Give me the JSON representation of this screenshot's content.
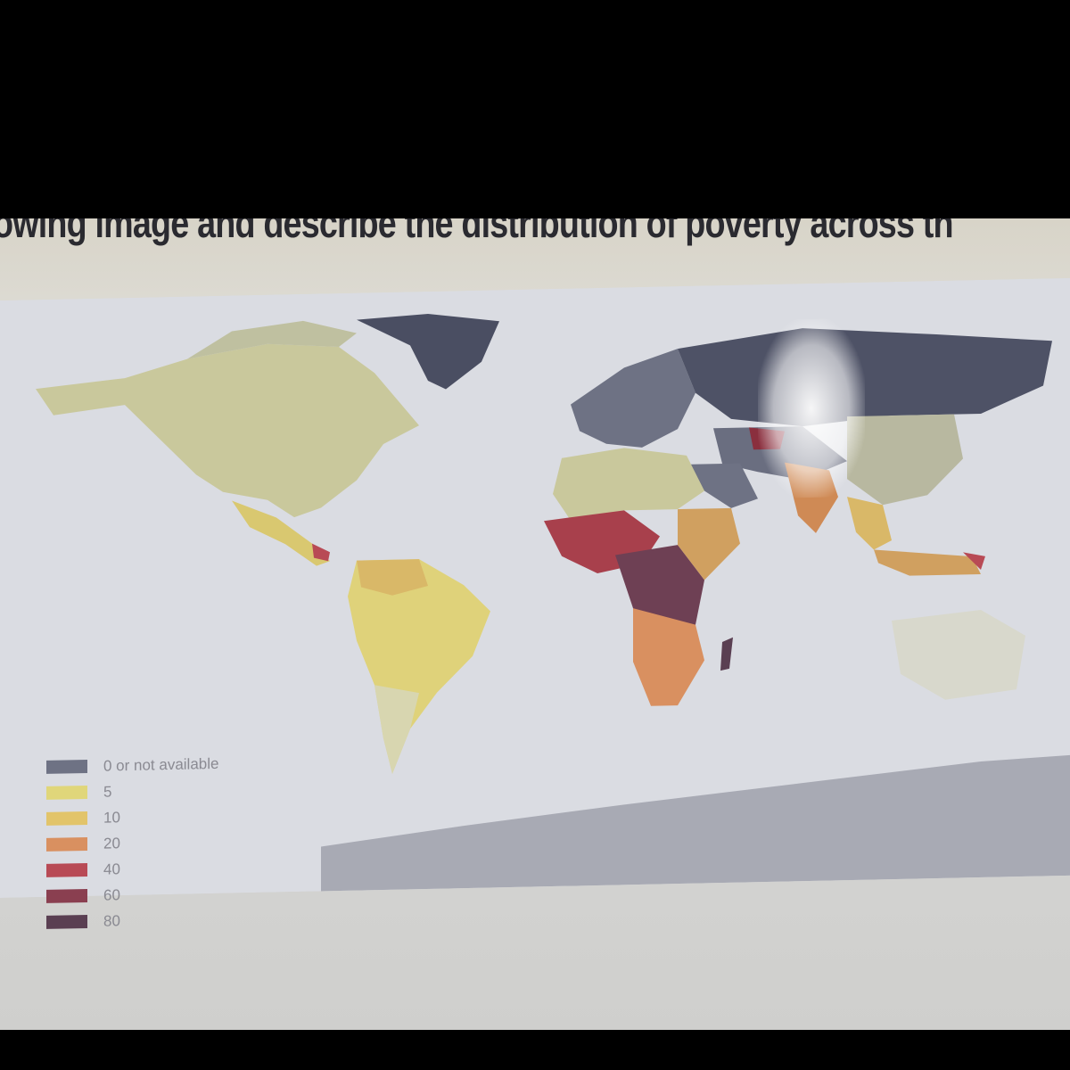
{
  "caption": "owing image and describe the distribution of poverty across th",
  "map": {
    "legend": [
      {
        "label": "0 or not available",
        "color": "#6e7284"
      },
      {
        "label": "5",
        "color": "#e0d67a"
      },
      {
        "label": "10",
        "color": "#e2c46a"
      },
      {
        "label": "20",
        "color": "#d99060"
      },
      {
        "label": "40",
        "color": "#b84a55"
      },
      {
        "label": "60",
        "color": "#8a3f50"
      },
      {
        "label": "80",
        "color": "#5a3f52"
      }
    ],
    "colors": {
      "ocean": "#d9dbe0",
      "greenland": "#4a4e62",
      "low": "#c9c79a"
    }
  }
}
